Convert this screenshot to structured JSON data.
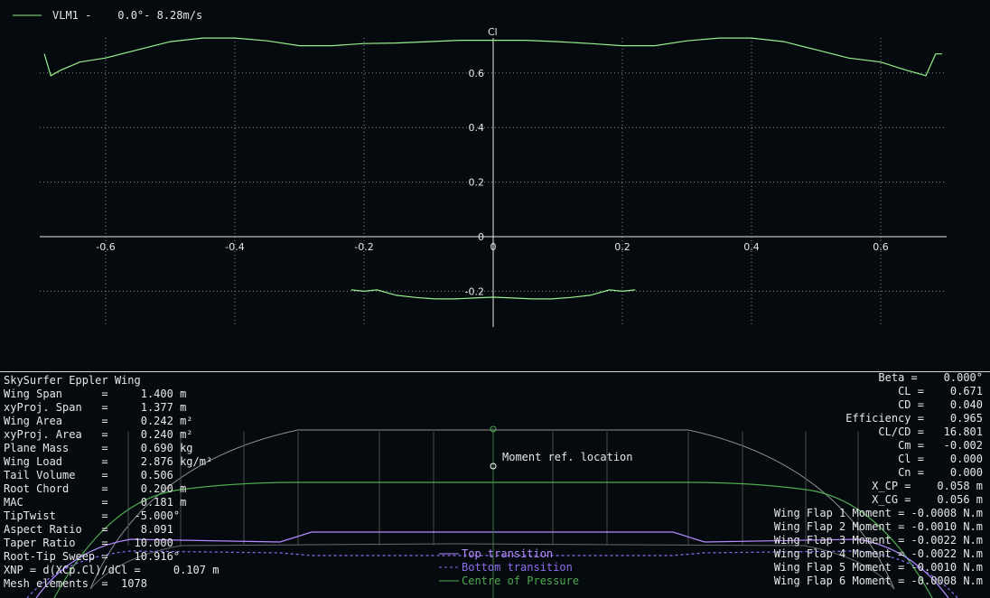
{
  "chart_data": {
    "type": "line",
    "title": "",
    "ylabel": "Cl",
    "xlabel": "",
    "xlim": [
      -0.7,
      0.7
    ],
    "ylim": [
      -0.3,
      0.75
    ],
    "grid": true,
    "legend": "top-left",
    "x_ticks": [
      "-0.6",
      "-0.4",
      "-0.2",
      "0",
      "0.2",
      "0.4",
      "0.6"
    ],
    "y_ticks": [
      "0.6",
      "0.4",
      "0.2",
      "0",
      "-0.2"
    ],
    "series": [
      {
        "name": "VLM1 -    0.0°- 8.28m/s",
        "color": "#98f08a",
        "x": [
          -0.695,
          -0.685,
          -0.67,
          -0.64,
          -0.6,
          -0.55,
          -0.5,
          -0.45,
          -0.4,
          -0.35,
          -0.3,
          -0.25,
          -0.2,
          -0.15,
          -0.1,
          -0.05,
          0,
          0.05,
          0.1,
          0.15,
          0.2,
          0.25,
          0.3,
          0.35,
          0.4,
          0.45,
          0.5,
          0.55,
          0.6,
          0.64,
          0.67,
          0.685,
          0.695
        ],
        "y": [
          0.67,
          0.59,
          0.61,
          0.64,
          0.655,
          0.685,
          0.715,
          0.728,
          0.728,
          0.718,
          0.7,
          0.7,
          0.708,
          0.71,
          0.715,
          0.72,
          0.72,
          0.72,
          0.715,
          0.708,
          0.7,
          0.7,
          0.718,
          0.728,
          0.728,
          0.715,
          0.685,
          0.655,
          0.64,
          0.61,
          0.59,
          0.67,
          0.67
        ]
      },
      {
        "name": "",
        "color": "#98f08a",
        "x": [
          -0.22,
          -0.2,
          -0.18,
          -0.15,
          -0.12,
          -0.09,
          -0.06,
          -0.03,
          0,
          0.03,
          0.06,
          0.09,
          0.12,
          0.15,
          0.18,
          0.2,
          0.22
        ],
        "y": [
          -0.195,
          -0.2,
          -0.195,
          -0.215,
          -0.223,
          -0.228,
          -0.228,
          -0.225,
          -0.222,
          -0.225,
          -0.228,
          -0.228,
          -0.223,
          -0.215,
          -0.195,
          -0.2,
          -0.195
        ]
      }
    ]
  },
  "wing": {
    "name": "SkySurfer Eppler Wing",
    "left_props": [
      "Wing Span      =     1.400 m",
      "xyProj. Span   =     1.377 m",
      "Wing Area      =     0.242 m²",
      "xyProj. Area   =     0.240 m²",
      "Plane Mass     =     0.690 kg",
      "Wing Load      =     2.876 kg/m²",
      "Tail Volume    =     0.506",
      "Root Chord     =     0.200 m",
      "MAC            =     0.181 m",
      "TipTwist       =    -5.000°",
      "Aspect Ratio   =     8.091",
      "Taper Ratio    =    10.000",
      "Root-Tip Sweep =    10.916°",
      "XNP = d(XCp.Cl)/dCl =     0.107 m",
      "Mesh elements  =  1078"
    ],
    "right_props": [
      "Beta =    0.000°",
      "CL =    0.671",
      "CD =    0.040",
      "Efficiency =    0.965",
      "CL/CD =   16.801",
      "Cm =   -0.002",
      "Cl =    0.000",
      "Cn =    0.000",
      "X_CP =    0.058 m",
      "X_CG =    0.056 m",
      "Wing Flap 1 Moment = -0.0008 N.m",
      "Wing Flap 2 Moment = -0.0010 N.m",
      "Wing Flap 3 Moment = -0.0022 N.m",
      "Wing Flap 4 Moment = -0.0022 N.m",
      "Wing Flap 5 Moment = -0.0010 N.m",
      "Wing Flap 6 Moment = -0.0008 N.m"
    ],
    "moment_ref_label": "Moment ref. location",
    "legend": {
      "top": "Top transition",
      "bottom": "Bottom transition",
      "cp": "Centre of Pressure"
    },
    "colors": {
      "top": "#b48cff",
      "bottom": "#8f6df0",
      "cp": "#4faa4f",
      "outline": "#9a9a9a"
    }
  }
}
